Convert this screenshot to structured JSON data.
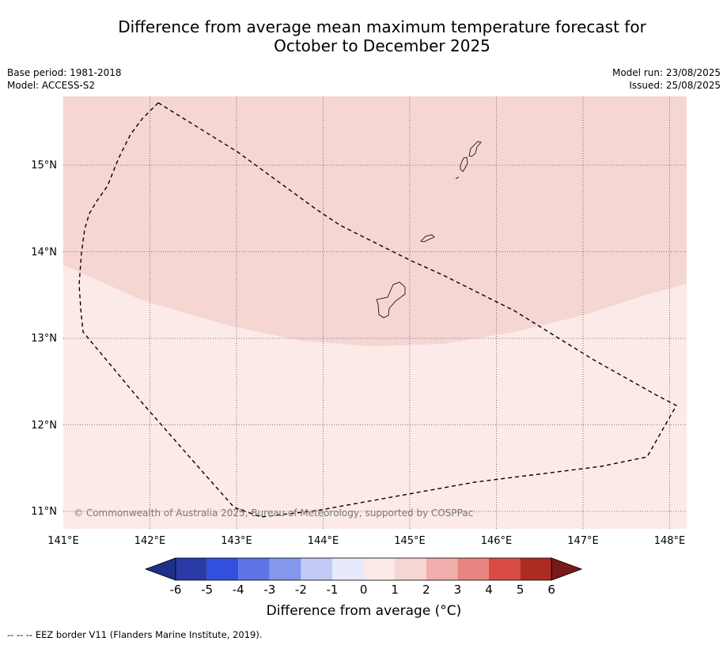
{
  "title_line1": "Difference from average mean maximum temperature forecast for",
  "title_line2": "October to December 2025",
  "meta_left": {
    "base_period": "Base period: 1981-2018",
    "model": "Model: ACCESS-S2"
  },
  "meta_right": {
    "model_run": "Model run: 23/08/2025",
    "issued": "Issued: 25/08/2025"
  },
  "map": {
    "lon_ticks": [
      "141°E",
      "142°E",
      "143°E",
      "144°E",
      "145°E",
      "146°E",
      "147°E",
      "148°E"
    ],
    "lat_ticks": [
      "15°N",
      "14°N",
      "13°N",
      "12°N",
      "11°N"
    ],
    "copyright": "© Commonwealth of Australia 2025, Bureau of Meteorology, supported by COSPPac",
    "zone_colors": {
      "one_to_two": "#f5d6d3",
      "zero_to_one": "#fbeae8"
    }
  },
  "colorbar": {
    "tick_labels": [
      "-6",
      "-5",
      "-4",
      "-3",
      "-2",
      "-1",
      "0",
      "1",
      "2",
      "3",
      "4",
      "5",
      "6"
    ],
    "colors": [
      "#2a3ba8",
      "#3350df",
      "#5d73e6",
      "#8497ec",
      "#c2c9f4",
      "#e7eafb",
      "#fbeae8",
      "#f5d6d3",
      "#efadab",
      "#e78580",
      "#d94c43",
      "#ad2b22"
    ],
    "under_color": "#1f2f86",
    "over_color": "#7a1a18",
    "label": "Difference from average (°C)"
  },
  "footnote": "--  --  -- EEZ border V11 (Flanders Marine Institute, 2019)."
}
